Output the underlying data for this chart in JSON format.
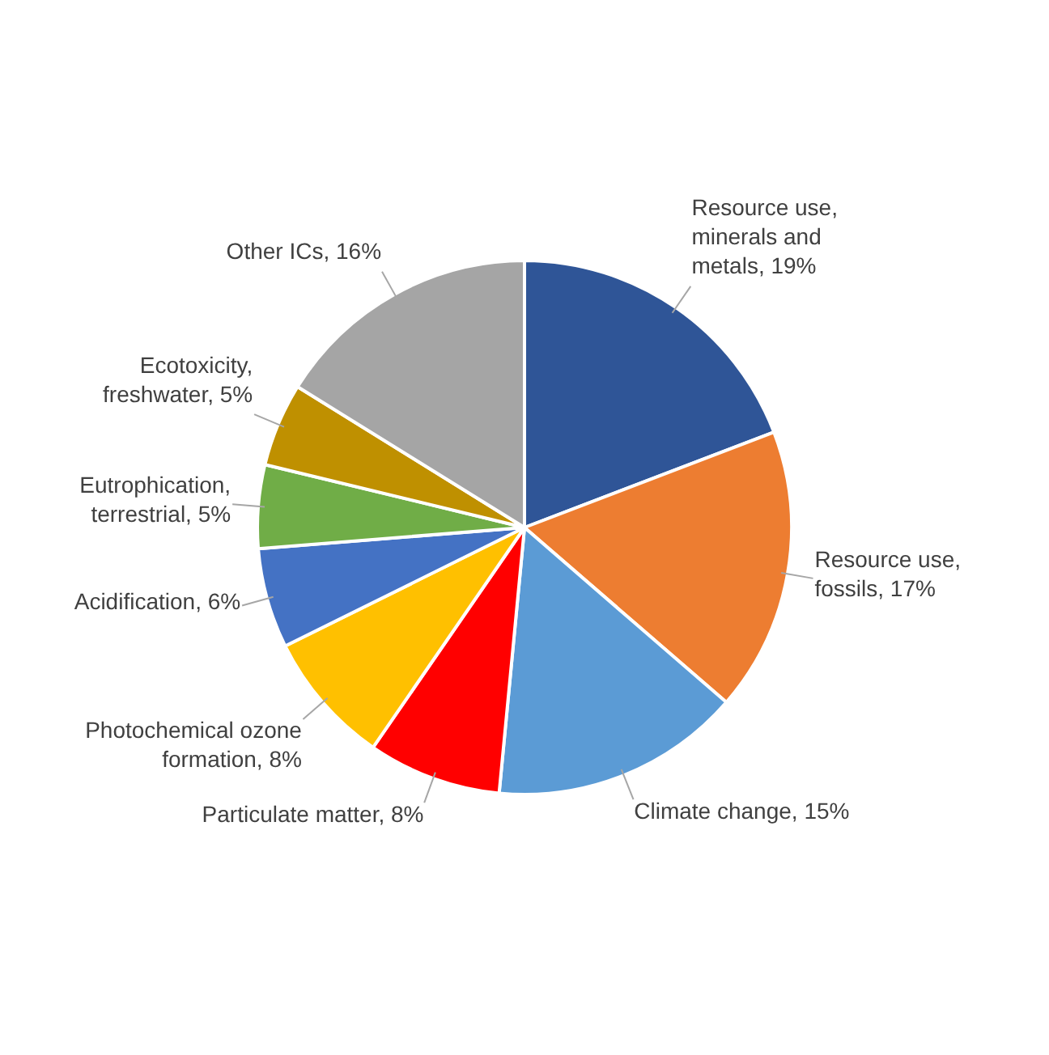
{
  "chart_data": {
    "type": "pie",
    "categories": [
      "Resource use, minerals and metals",
      "Resource use, fossils",
      "Climate change",
      "Particulate matter",
      "Photochemical ozone formation",
      "Acidification",
      "Eutrophication, terrestrial",
      "Ecotoxicity, freshwater",
      "Other ICs"
    ],
    "values": [
      19,
      17,
      15,
      8,
      8,
      6,
      5,
      5,
      16
    ],
    "value_labels": [
      "19%",
      "17%",
      "15%",
      "8%",
      "8%",
      "6%",
      "5%",
      "5%",
      "16%"
    ],
    "colors": [
      "#2f5597",
      "#ed7d31",
      "#5b9bd5",
      "#ff0000",
      "#ffc000",
      "#4472c4",
      "#70ad47",
      "#bf9000",
      "#a5a5a5"
    ],
    "legend": false
  }
}
